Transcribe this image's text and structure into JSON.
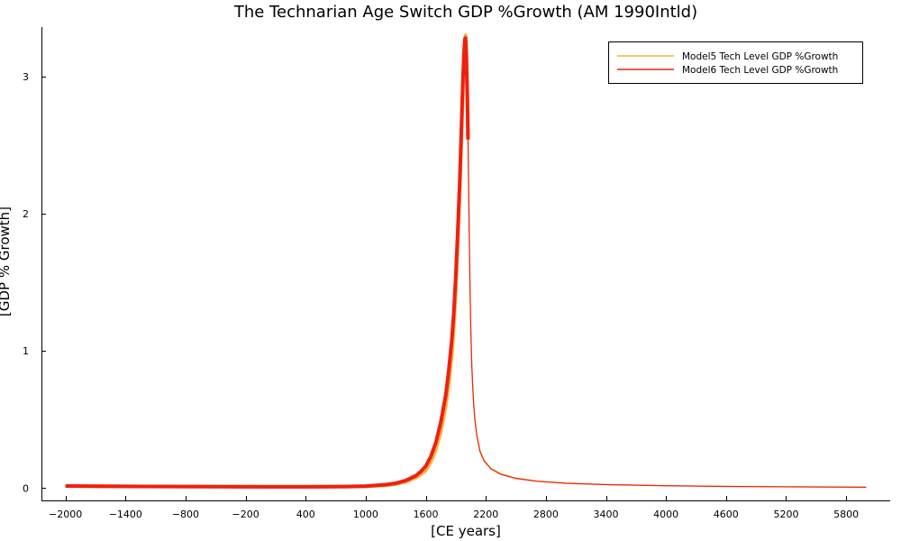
{
  "chart_data": {
    "type": "line",
    "title": "The Technarian Age Switch GDP %Growth (AM 1990Intld)",
    "xlabel": "[CE years]",
    "ylabel": "[GDP % Growth]",
    "xlim": [
      -2240,
      6240
    ],
    "ylim": [
      -0.09,
      3.36
    ],
    "x_ticks": [
      -2000,
      -1400,
      -800,
      -200,
      400,
      1000,
      1600,
      2200,
      2800,
      3400,
      4000,
      4600,
      5200,
      5800
    ],
    "x_tick_labels": [
      "−2000",
      "−1400",
      "−800",
      "−200",
      "400",
      "1000",
      "1600",
      "2200",
      "2800",
      "3400",
      "4000",
      "4600",
      "5200",
      "5800"
    ],
    "y_ticks": [
      0,
      1,
      2,
      3
    ],
    "y_tick_labels": [
      "0",
      "1",
      "2",
      "3"
    ],
    "grid": false,
    "legend": {
      "position": "top-right"
    },
    "series": [
      {
        "name": "Model5 Tech Level GDP %Growth",
        "color": "#f3b23c",
        "style": "thin",
        "points": [
          [
            -2000,
            0.016
          ],
          [
            -1600,
            0.014
          ],
          [
            -1200,
            0.012
          ],
          [
            -800,
            0.011
          ],
          [
            -400,
            0.01
          ],
          [
            0,
            0.009
          ],
          [
            400,
            0.009
          ],
          [
            800,
            0.01
          ],
          [
            1000,
            0.012
          ],
          [
            1200,
            0.02
          ],
          [
            1300,
            0.03
          ],
          [
            1400,
            0.045
          ],
          [
            1500,
            0.075
          ],
          [
            1550,
            0.1
          ],
          [
            1600,
            0.13
          ],
          [
            1650,
            0.19
          ],
          [
            1700,
            0.28
          ],
          [
            1750,
            0.41
          ],
          [
            1800,
            0.6
          ],
          [
            1830,
            0.76
          ],
          [
            1860,
            0.97
          ],
          [
            1880,
            1.17
          ],
          [
            1900,
            1.45
          ],
          [
            1920,
            1.8
          ],
          [
            1940,
            2.18
          ],
          [
            1955,
            2.52
          ],
          [
            1970,
            2.9
          ],
          [
            1980,
            3.12
          ],
          [
            1990,
            3.27
          ],
          [
            1998,
            3.3
          ],
          [
            2006,
            3.18
          ],
          [
            2015,
            2.88
          ],
          [
            2022,
            2.56
          ],
          [
            2030,
            2.12
          ],
          [
            2040,
            1.57
          ],
          [
            2050,
            1.17
          ],
          [
            2060,
            0.9
          ],
          [
            2075,
            0.66
          ],
          [
            2090,
            0.51
          ],
          [
            2110,
            0.39
          ],
          [
            2140,
            0.28
          ],
          [
            2180,
            0.205
          ],
          [
            2250,
            0.145
          ],
          [
            2350,
            0.105
          ],
          [
            2500,
            0.074
          ],
          [
            2700,
            0.053
          ],
          [
            3000,
            0.037
          ],
          [
            3400,
            0.026
          ],
          [
            4000,
            0.018
          ],
          [
            4600,
            0.013
          ],
          [
            5200,
            0.01
          ],
          [
            5800,
            0.008
          ],
          [
            6000,
            0.007
          ]
        ]
      },
      {
        "name": "Model6 Tech Level GDP %Growth",
        "color": "#ef2010",
        "style": "thin",
        "points": [
          [
            -2000,
            0.015
          ],
          [
            -1600,
            0.013
          ],
          [
            -1200,
            0.012
          ],
          [
            -800,
            0.011
          ],
          [
            -400,
            0.01
          ],
          [
            0,
            0.009
          ],
          [
            400,
            0.009
          ],
          [
            800,
            0.011
          ],
          [
            1000,
            0.014
          ],
          [
            1200,
            0.025
          ],
          [
            1300,
            0.035
          ],
          [
            1400,
            0.055
          ],
          [
            1500,
            0.09
          ],
          [
            1550,
            0.12
          ],
          [
            1600,
            0.16
          ],
          [
            1650,
            0.23
          ],
          [
            1700,
            0.33
          ],
          [
            1750,
            0.48
          ],
          [
            1800,
            0.68
          ],
          [
            1830,
            0.86
          ],
          [
            1860,
            1.08
          ],
          [
            1880,
            1.28
          ],
          [
            1900,
            1.55
          ],
          [
            1920,
            1.88
          ],
          [
            1940,
            2.25
          ],
          [
            1955,
            2.6
          ],
          [
            1970,
            2.95
          ],
          [
            1980,
            3.15
          ],
          [
            1990,
            3.27
          ],
          [
            1997,
            3.28
          ],
          [
            2005,
            3.15
          ],
          [
            2015,
            2.85
          ],
          [
            2022,
            2.54
          ],
          [
            2030,
            2.1
          ],
          [
            2040,
            1.55
          ],
          [
            2050,
            1.15
          ],
          [
            2060,
            0.88
          ],
          [
            2075,
            0.65
          ],
          [
            2090,
            0.5
          ],
          [
            2110,
            0.38
          ],
          [
            2140,
            0.27
          ],
          [
            2180,
            0.2
          ],
          [
            2250,
            0.14
          ],
          [
            2350,
            0.1
          ],
          [
            2500,
            0.07
          ],
          [
            2700,
            0.05
          ],
          [
            3000,
            0.035
          ],
          [
            3400,
            0.025
          ],
          [
            4000,
            0.017
          ],
          [
            4600,
            0.012
          ],
          [
            5200,
            0.009
          ],
          [
            5800,
            0.007
          ],
          [
            6000,
            0.006
          ]
        ]
      },
      {
        "color": "#f3b23c",
        "style": "bold",
        "points": [
          [
            -2000,
            0.016
          ],
          [
            -1600,
            0.014
          ],
          [
            -1200,
            0.012
          ],
          [
            -800,
            0.011
          ],
          [
            -400,
            0.01
          ],
          [
            0,
            0.009
          ],
          [
            400,
            0.009
          ],
          [
            800,
            0.01
          ],
          [
            1000,
            0.012
          ],
          [
            1200,
            0.02
          ],
          [
            1300,
            0.03
          ],
          [
            1400,
            0.045
          ],
          [
            1500,
            0.075
          ],
          [
            1550,
            0.1
          ],
          [
            1600,
            0.13
          ],
          [
            1650,
            0.19
          ],
          [
            1700,
            0.28
          ],
          [
            1750,
            0.41
          ],
          [
            1800,
            0.6
          ],
          [
            1830,
            0.76
          ],
          [
            1860,
            0.97
          ],
          [
            1880,
            1.17
          ],
          [
            1900,
            1.45
          ],
          [
            1920,
            1.8
          ],
          [
            1940,
            2.18
          ],
          [
            1955,
            2.52
          ],
          [
            1970,
            2.9
          ],
          [
            1980,
            3.12
          ],
          [
            1990,
            3.27
          ],
          [
            1998,
            3.3
          ],
          [
            2006,
            3.18
          ],
          [
            2015,
            2.88
          ],
          [
            2022,
            2.56
          ]
        ]
      },
      {
        "color": "#ef2010",
        "style": "bold",
        "points": [
          [
            -2000,
            0.015
          ],
          [
            -1600,
            0.013
          ],
          [
            -1200,
            0.012
          ],
          [
            -800,
            0.011
          ],
          [
            -400,
            0.01
          ],
          [
            0,
            0.009
          ],
          [
            400,
            0.009
          ],
          [
            800,
            0.011
          ],
          [
            1000,
            0.014
          ],
          [
            1200,
            0.025
          ],
          [
            1300,
            0.035
          ],
          [
            1400,
            0.055
          ],
          [
            1500,
            0.09
          ],
          [
            1550,
            0.12
          ],
          [
            1600,
            0.16
          ],
          [
            1650,
            0.23
          ],
          [
            1700,
            0.33
          ],
          [
            1750,
            0.48
          ],
          [
            1800,
            0.68
          ],
          [
            1830,
            0.86
          ],
          [
            1860,
            1.08
          ],
          [
            1880,
            1.28
          ],
          [
            1900,
            1.55
          ],
          [
            1920,
            1.88
          ],
          [
            1940,
            2.25
          ],
          [
            1955,
            2.6
          ],
          [
            1970,
            2.95
          ],
          [
            1980,
            3.15
          ],
          [
            1990,
            3.27
          ],
          [
            1997,
            3.28
          ],
          [
            2005,
            3.15
          ],
          [
            2015,
            2.85
          ],
          [
            2022,
            2.54
          ]
        ]
      }
    ]
  }
}
